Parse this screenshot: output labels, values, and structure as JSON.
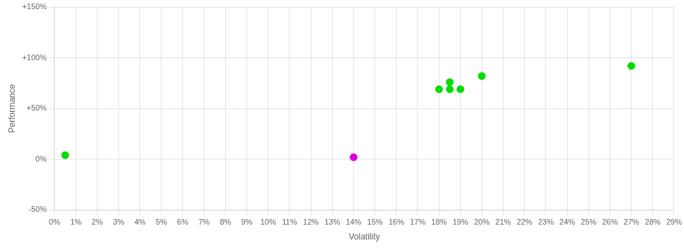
{
  "chart_data": {
    "type": "scatter",
    "xlabel": "Volatility",
    "ylabel": "Performance",
    "xlim": [
      0,
      0.29
    ],
    "xticks": [
      {
        "value": 0,
        "label": "0%"
      },
      {
        "value": 0.01,
        "label": "1%"
      },
      {
        "value": 0.02,
        "label": "2%"
      },
      {
        "value": 0.03,
        "label": "3%"
      },
      {
        "value": 0.04,
        "label": "4%"
      },
      {
        "value": 0.05,
        "label": "5%"
      },
      {
        "value": 0.06,
        "label": "6%"
      },
      {
        "value": 0.07,
        "label": "7%"
      },
      {
        "value": 0.08,
        "label": "8%"
      },
      {
        "value": 0.09,
        "label": "9%"
      },
      {
        "value": 0.1,
        "label": "10%"
      },
      {
        "value": 0.11,
        "label": "11%"
      },
      {
        "value": 0.12,
        "label": "12%"
      },
      {
        "value": 0.13,
        "label": "13%"
      },
      {
        "value": 0.14,
        "label": "14%"
      },
      {
        "value": 0.15,
        "label": "15%"
      },
      {
        "value": 0.16,
        "label": "16%"
      },
      {
        "value": 0.17,
        "label": "17%"
      },
      {
        "value": 0.18,
        "label": "18%"
      },
      {
        "value": 0.19,
        "label": "19%"
      },
      {
        "value": 0.2,
        "label": "20%"
      },
      {
        "value": 0.21,
        "label": "21%"
      },
      {
        "value": 0.22,
        "label": "22%"
      },
      {
        "value": 0.23,
        "label": "23%"
      },
      {
        "value": 0.24,
        "label": "24%"
      },
      {
        "value": 0.25,
        "label": "25%"
      },
      {
        "value": 0.26,
        "label": "26%"
      },
      {
        "value": 0.27,
        "label": "27%"
      },
      {
        "value": 0.28,
        "label": "28%"
      },
      {
        "value": 0.29,
        "label": "29%"
      }
    ],
    "ylim": [
      -0.5,
      1.5
    ],
    "yticks": [
      {
        "value": -0.5,
        "label": "-50%"
      },
      {
        "value": 0,
        "label": "0%"
      },
      {
        "value": 0.5,
        "label": "+50%"
      },
      {
        "value": 1,
        "label": "+100%"
      },
      {
        "value": 1.5,
        "label": "+150%"
      }
    ],
    "grid": true,
    "series": [
      {
        "color": "#00dd00",
        "x": [
          0.005,
          0.18,
          0.185,
          0.19,
          0.185,
          0.2,
          0.27
        ],
        "values": [
          0.04,
          0.69,
          0.69,
          0.69,
          0.76,
          0.82,
          0.92
        ]
      },
      {
        "color": "#dd00dd",
        "x": [
          0.14
        ],
        "values": [
          0.02
        ]
      }
    ]
  }
}
